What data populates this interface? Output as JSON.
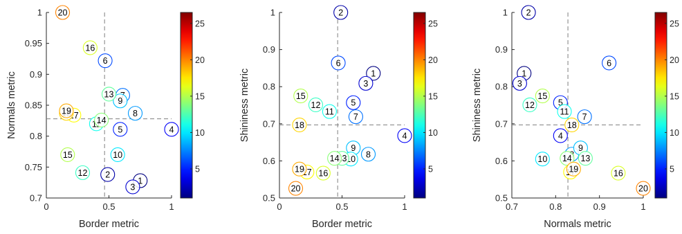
{
  "chart_data": [
    {
      "type": "scatter",
      "xlabel": "Border metric",
      "ylabel": "Normals metric",
      "xlim": [
        0,
        1
      ],
      "ylim": [
        0.7,
        1
      ],
      "xticks": [
        "0",
        "0.5",
        "1"
      ],
      "yticks": [
        "0.7",
        "0.75",
        "0.8",
        "0.85",
        "0.9",
        "0.95",
        "1"
      ],
      "reference_lines": {
        "x": 0.465,
        "y": 0.828
      },
      "points": [
        {
          "label": "1",
          "x": 0.75,
          "y": 0.728
        },
        {
          "label": "2",
          "x": 0.49,
          "y": 0.738
        },
        {
          "label": "3",
          "x": 0.69,
          "y": 0.718
        },
        {
          "label": "4",
          "x": 1.0,
          "y": 0.811
        },
        {
          "label": "5",
          "x": 0.59,
          "y": 0.811
        },
        {
          "label": "6",
          "x": 0.47,
          "y": 0.922
        },
        {
          "label": "7",
          "x": 0.61,
          "y": 0.866
        },
        {
          "label": "8",
          "x": 0.71,
          "y": 0.837
        },
        {
          "label": "9",
          "x": 0.59,
          "y": 0.857
        },
        {
          "label": "10",
          "x": 0.57,
          "y": 0.77
        },
        {
          "label": "11",
          "x": 0.4,
          "y": 0.82
        },
        {
          "label": "12",
          "x": 0.29,
          "y": 0.741
        },
        {
          "label": "13",
          "x": 0.5,
          "y": 0.868
        },
        {
          "label": "14",
          "x": 0.44,
          "y": 0.826
        },
        {
          "label": "15",
          "x": 0.17,
          "y": 0.77
        },
        {
          "label": "16",
          "x": 0.35,
          "y": 0.943
        },
        {
          "label": "17",
          "x": 0.22,
          "y": 0.834
        },
        {
          "label": "18",
          "x": 0.16,
          "y": 0.837
        },
        {
          "label": "19",
          "x": 0.16,
          "y": 0.841
        },
        {
          "label": "20",
          "x": 0.13,
          "y": 1.0
        }
      ]
    },
    {
      "type": "scatter",
      "xlabel": "Border metric",
      "ylabel": "Shininess metric",
      "xlim": [
        0,
        1
      ],
      "ylim": [
        0.5,
        1
      ],
      "xticks": [
        "0",
        "0.5",
        "1"
      ],
      "yticks": [
        "0.5",
        "0.6",
        "0.7",
        "0.8",
        "0.9",
        "1"
      ],
      "reference_lines": {
        "x": 0.465,
        "y": 0.697
      },
      "points": [
        {
          "label": "1",
          "x": 0.75,
          "y": 0.836
        },
        {
          "label": "2",
          "x": 0.49,
          "y": 1.0
        },
        {
          "label": "3",
          "x": 0.69,
          "y": 0.809
        },
        {
          "label": "4",
          "x": 1.0,
          "y": 0.668
        },
        {
          "label": "5",
          "x": 0.59,
          "y": 0.757
        },
        {
          "label": "6",
          "x": 0.47,
          "y": 0.864
        },
        {
          "label": "7",
          "x": 0.61,
          "y": 0.719
        },
        {
          "label": "8",
          "x": 0.71,
          "y": 0.618
        },
        {
          "label": "9",
          "x": 0.59,
          "y": 0.635
        },
        {
          "label": "10",
          "x": 0.57,
          "y": 0.605
        },
        {
          "label": "11",
          "x": 0.4,
          "y": 0.733
        },
        {
          "label": "12",
          "x": 0.29,
          "y": 0.751
        },
        {
          "label": "13",
          "x": 0.5,
          "y": 0.607
        },
        {
          "label": "14",
          "x": 0.44,
          "y": 0.607
        },
        {
          "label": "15",
          "x": 0.17,
          "y": 0.775
        },
        {
          "label": "16",
          "x": 0.35,
          "y": 0.567
        },
        {
          "label": "17",
          "x": 0.22,
          "y": 0.57
        },
        {
          "label": "18",
          "x": 0.16,
          "y": 0.697
        },
        {
          "label": "19",
          "x": 0.16,
          "y": 0.578
        },
        {
          "label": "20",
          "x": 0.13,
          "y": 0.526
        }
      ]
    },
    {
      "type": "scatter",
      "xlabel": "Normals metric",
      "ylabel": "Shininess metric",
      "xlim": [
        0.7,
        1
      ],
      "ylim": [
        0.5,
        1
      ],
      "xticks": [
        "0.7",
        "0.8",
        "0.9",
        "1"
      ],
      "yticks": [
        "0.5",
        "0.6",
        "0.7",
        "0.8",
        "0.9",
        "1"
      ],
      "reference_lines": {
        "x": 0.828,
        "y": 0.697
      },
      "points": [
        {
          "label": "1",
          "x": 0.728,
          "y": 0.836
        },
        {
          "label": "2",
          "x": 0.738,
          "y": 1.0
        },
        {
          "label": "3",
          "x": 0.718,
          "y": 0.809
        },
        {
          "label": "4",
          "x": 0.811,
          "y": 0.668
        },
        {
          "label": "5",
          "x": 0.811,
          "y": 0.757
        },
        {
          "label": "6",
          "x": 0.922,
          "y": 0.864
        },
        {
          "label": "7",
          "x": 0.866,
          "y": 0.719
        },
        {
          "label": "8",
          "x": 0.837,
          "y": 0.618
        },
        {
          "label": "9",
          "x": 0.857,
          "y": 0.635
        },
        {
          "label": "10",
          "x": 0.77,
          "y": 0.605
        },
        {
          "label": "11",
          "x": 0.82,
          "y": 0.733
        },
        {
          "label": "12",
          "x": 0.741,
          "y": 0.751
        },
        {
          "label": "13",
          "x": 0.868,
          "y": 0.607
        },
        {
          "label": "14",
          "x": 0.826,
          "y": 0.607
        },
        {
          "label": "15",
          "x": 0.77,
          "y": 0.775
        },
        {
          "label": "16",
          "x": 0.943,
          "y": 0.567
        },
        {
          "label": "17",
          "x": 0.834,
          "y": 0.57
        },
        {
          "label": "18",
          "x": 0.837,
          "y": 0.697
        },
        {
          "label": "19",
          "x": 0.841,
          "y": 0.578
        },
        {
          "label": "20",
          "x": 1.0,
          "y": 0.526
        }
      ]
    }
  ],
  "colorbar": {
    "colormap": "jet",
    "range": [
      1,
      26.5
    ],
    "ticks": [
      5,
      10,
      15,
      20,
      25
    ],
    "tick_labels": [
      "5",
      "10",
      "15",
      "20",
      "25"
    ]
  },
  "point_color_rule": "color = jet(label) on the colorbar scale",
  "colors": {
    "axis": "#262626",
    "reference_line": "#7f7f7f",
    "marker_fill": "#ffffff"
  }
}
